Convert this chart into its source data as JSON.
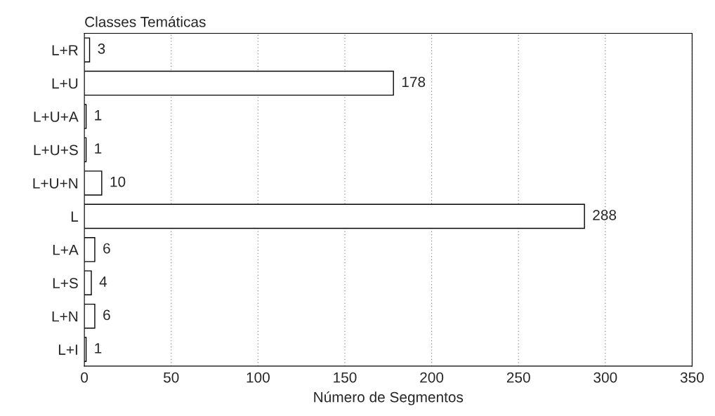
{
  "chart_data": {
    "type": "bar",
    "orientation": "horizontal",
    "ylabel": "Classes Temáticas",
    "xlabel": "Número de Segmentos",
    "categories": [
      "L+R",
      "L+U",
      "L+U+A",
      "L+U+S",
      "L+U+N",
      "L",
      "L+A",
      "L+S",
      "L+N",
      "L+I"
    ],
    "values": [
      3,
      178,
      1,
      1,
      10,
      288,
      6,
      4,
      6,
      1
    ],
    "color": "#ffffff",
    "xlim": [
      0,
      350
    ],
    "xticks": [
      0,
      50,
      100,
      150,
      200,
      250,
      300,
      350
    ],
    "grid": "x",
    "data_labels": true,
    "legend": false
  }
}
